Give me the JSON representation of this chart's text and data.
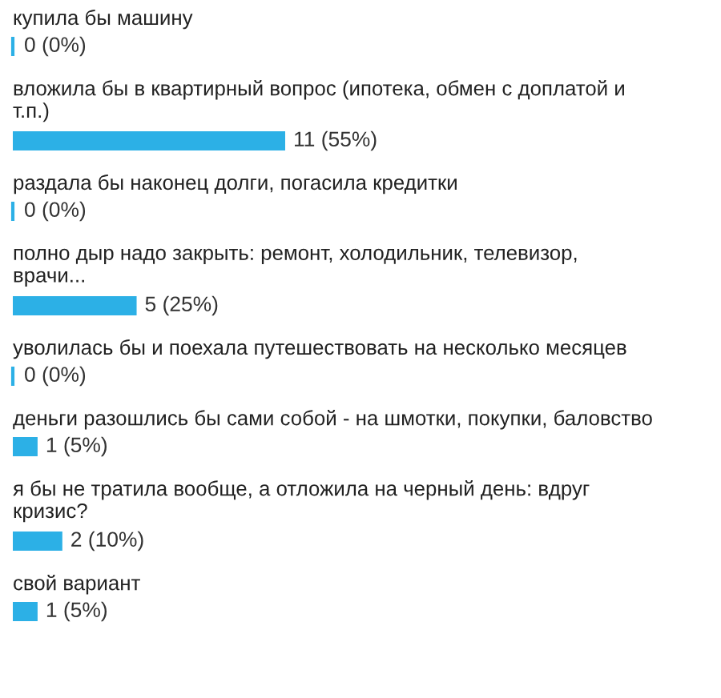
{
  "chart_data": {
    "type": "bar",
    "orientation": "horizontal",
    "categories": [
      "купила бы машину",
      "вложила бы в квартирный вопрос (ипотека, обмен с доплатой и т.п.)",
      "раздала бы наконец долги, погасила кредитки",
      "полно дыр надо закрыть: ремонт, холодильник, телевизор, врачи...",
      "уволилась бы и поехала путешествовать на несколько месяцев",
      "деньги разошлись бы сами собой - на шмотки, покупки, баловство",
      "я бы не тратила вообще, а отложила на черный день: вдруг кризис?",
      "свой вариант"
    ],
    "values": [
      0,
      11,
      0,
      5,
      0,
      1,
      2,
      1
    ],
    "value_labels": [
      "0 (0%)",
      "11 (55%)",
      "0 (0%)",
      "5 (25%)",
      "0 (0%)",
      "1 (5%)",
      "2 (10%)",
      "1 (5%)"
    ],
    "color": "#2cb0e6",
    "legend": false
  }
}
